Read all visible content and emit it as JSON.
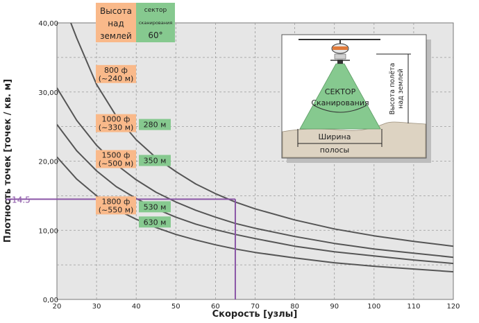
{
  "chart_data": {
    "type": "line",
    "title": "",
    "xlabel": "Скорость [узлы]",
    "ylabel": "Плотность точек [точек / кв. м]",
    "xlim": [
      20,
      120
    ],
    "ylim": [
      0,
      40
    ],
    "x_ticks": [
      20,
      30,
      40,
      50,
      60,
      70,
      80,
      90,
      100,
      110,
      120
    ],
    "y_ticks": [
      0,
      10,
      20,
      30,
      40
    ],
    "y_tick_labels": [
      "0,00",
      "10,00",
      "20,00",
      "30,00",
      "40,00"
    ],
    "grid": true,
    "colors": {
      "curve": "#555555",
      "plot_bg": "#e6e6e6",
      "marker": "#8a55a6",
      "altitude_box": "#f9b98a",
      "sector_box": "#86c98f"
    },
    "series": [
      {
        "x": [
          23.5,
          25,
          30,
          35,
          40,
          45,
          50,
          55,
          60,
          65,
          70,
          80,
          90,
          100,
          110,
          120
        ],
        "values": [
          40,
          37.8,
          31.1,
          26.5,
          23.1,
          20.5,
          18.5,
          16.7,
          15.3,
          14.1,
          13.1,
          11.5,
          10.2,
          9.2,
          8.4,
          7.7
        ]
      },
      {
        "x": [
          20,
          25,
          30,
          35,
          40,
          45,
          50,
          55,
          60,
          65,
          70,
          80,
          90,
          100,
          110,
          120
        ],
        "values": [
          30.6,
          25.9,
          22.3,
          19.5,
          17.3,
          15.5,
          14.1,
          12.9,
          11.9,
          11,
          10.3,
          9.1,
          8.1,
          7.3,
          6.7,
          6.1
        ]
      },
      {
        "x": [
          20,
          25,
          30,
          35,
          40,
          45,
          50,
          55,
          60,
          65,
          70,
          80,
          90,
          100,
          110,
          120
        ],
        "values": [
          25.3,
          21.5,
          18.6,
          16.3,
          14.6,
          13.1,
          11.9,
          10.9,
          10.1,
          9.4,
          8.8,
          7.7,
          6.9,
          6.3,
          5.7,
          5.2
        ]
      },
      {
        "x": [
          20,
          25,
          30,
          35,
          40,
          45,
          50,
          55,
          60,
          65,
          70,
          80,
          90,
          100,
          110,
          120
        ],
        "values": [
          20.6,
          17.4,
          15,
          13,
          11.6,
          10.4,
          9.4,
          8.6,
          7.9,
          7.3,
          6.8,
          6,
          5.3,
          4.8,
          4.4,
          4
        ]
      }
    ],
    "marker": {
      "label": "~14.5",
      "x": 65,
      "y": 14.5
    },
    "curve_labels": [
      {
        "altitude": [
          "800 ф",
          "(~240 м)"
        ],
        "at_y": 32.6
      },
      {
        "altitude": [
          "1000 ф",
          "(~330 м)"
        ],
        "sector": "280 м",
        "at_y": 25.5
      },
      {
        "altitude": [
          "1500 ф",
          "(~500 м)"
        ],
        "sector": "350 м",
        "at_y": 20.3
      },
      {
        "altitude": [
          "1800 ф",
          "(~550 м)"
        ],
        "sector": "530 м",
        "at_y": 13.6
      },
      {
        "sector": "630 м",
        "at_y": 11.2
      }
    ],
    "header_boxes": {
      "altitude": [
        "Высота",
        "над",
        "землей"
      ],
      "sector": [
        "сектор",
        "сканирования",
        "60°"
      ]
    },
    "inset": {
      "sector": [
        "СЕКТОР",
        "Сканирования"
      ],
      "height": [
        "Высота полёта",
        "над землей"
      ],
      "swath": [
        "Ширина",
        "полосы"
      ]
    }
  }
}
